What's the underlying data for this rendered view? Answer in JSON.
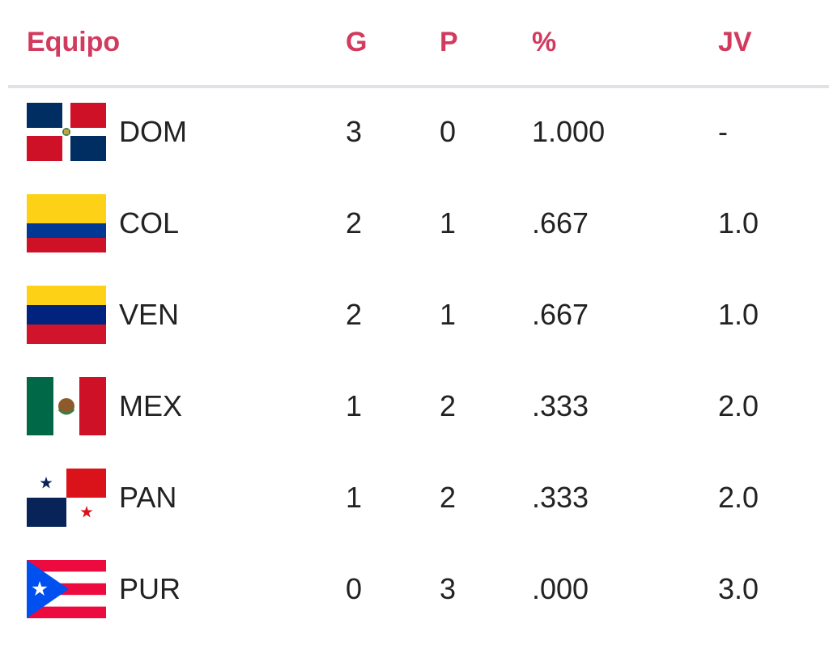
{
  "table": {
    "header": [
      "Equipo",
      "G",
      "P",
      "%",
      "JV"
    ],
    "rows": [
      [
        "DOM",
        "3",
        "0",
        "1.000",
        "-"
      ],
      [
        "COL",
        "2",
        "1",
        ".667",
        "1.0"
      ],
      [
        "VEN",
        "2",
        "1",
        ".667",
        "1.0"
      ],
      [
        "MEX",
        "1",
        "2",
        ".333",
        "2.0"
      ],
      [
        "PAN",
        "1",
        "2",
        ".333",
        "2.0"
      ],
      [
        "PUR",
        "0",
        "3",
        ".000",
        "3.0"
      ]
    ]
  }
}
